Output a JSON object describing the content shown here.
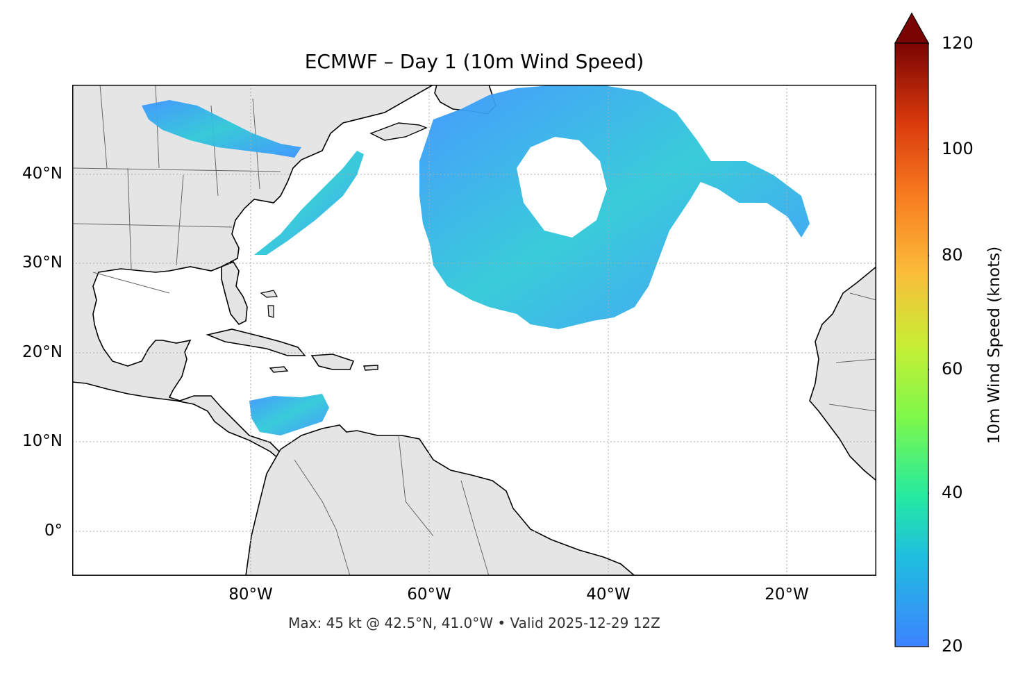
{
  "title": "ECMWF – Day 1 (10m Wind Speed)",
  "footer": "Max: 45 kt @ 42.5°N, 41.0°W • Valid 2025-12-29 12Z",
  "map": {
    "extent": {
      "lon": [
        -100,
        -10
      ],
      "lat": [
        -5,
        50
      ]
    },
    "land_color": "#e5e5e5",
    "ocean_color": "#ffffff",
    "gridlines": "dotted"
  },
  "x_ticks": [
    "80°W",
    "60°W",
    "40°W",
    "20°W"
  ],
  "y_ticks": [
    "40°N",
    "30°N",
    "20°N",
    "10°N",
    "0°"
  ],
  "colorbar": {
    "label": "10m Wind Speed (knots)",
    "ticks": [
      "120",
      "100",
      "80",
      "60",
      "40",
      "20"
    ],
    "range": [
      20,
      120
    ],
    "extend": "max",
    "colors": [
      "#3d82ff",
      "#1fbfe0",
      "#25eaa0",
      "#7ef84a",
      "#c8ee35",
      "#fbbc3a",
      "#f87a1f",
      "#d9390c",
      "#a31605",
      "#7a0403"
    ]
  },
  "max_wind": {
    "value_kt": 45,
    "lat": 42.5,
    "lon": -41.0
  }
}
